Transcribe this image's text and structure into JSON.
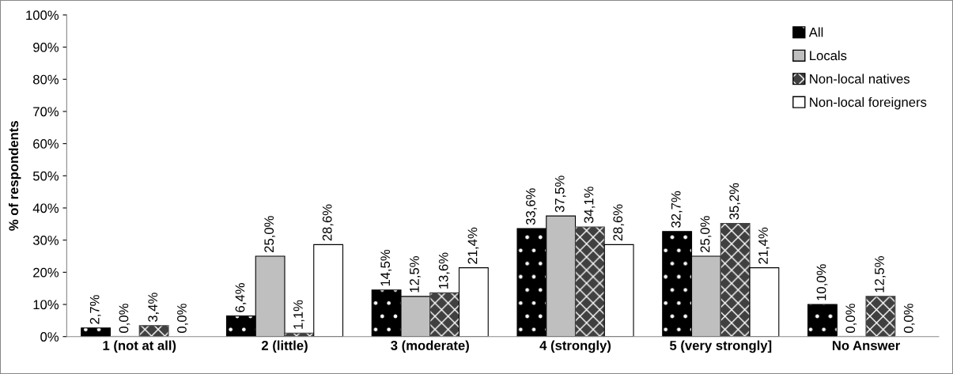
{
  "chart_data": {
    "type": "bar",
    "ylabel": "% of respondents",
    "categories": [
      "1 (not at all)",
      "2 (little)",
      "3 (moderate)",
      "4 (strongly)",
      "5 (very strongly]",
      "No Answer"
    ],
    "series": [
      {
        "name": "All",
        "color": "#000000",
        "values": [
          2.7,
          6.4,
          14.5,
          33.6,
          32.7,
          10.0
        ],
        "value_labels": [
          "2,7%",
          "6,4%",
          "14,5%",
          "33,6%",
          "32,7%",
          "10,0%"
        ]
      },
      {
        "name": "Locals",
        "color": "#bfbfbf",
        "values": [
          0.0,
          25.0,
          12.5,
          37.5,
          25.0,
          0.0
        ],
        "value_labels": [
          "0,0%",
          "25,0%",
          "12,5%",
          "37,5%",
          "25,0%",
          "0,0%"
        ]
      },
      {
        "name": "Non-local natives",
        "color": "#404040",
        "values": [
          3.4,
          1.1,
          13.6,
          34.1,
          35.2,
          12.5
        ],
        "value_labels": [
          "3,4%",
          "1,1%",
          "13,6%",
          "34,1%",
          "35,2%",
          "12,5%"
        ]
      },
      {
        "name": "Non-local foreigners",
        "color": "#ffffff",
        "values": [
          0.0,
          28.6,
          21.4,
          28.6,
          21.4,
          0.0
        ],
        "value_labels": [
          "0,0%",
          "28,6%",
          "21,4%",
          "28,6%",
          "21,4%",
          "0,0%"
        ]
      }
    ],
    "ylim": [
      0,
      100
    ],
    "yticks": [
      {
        "value": 0,
        "label": "0%"
      },
      {
        "value": 10,
        "label": "10%"
      },
      {
        "value": 20,
        "label": "20%"
      },
      {
        "value": 30,
        "label": "30%"
      },
      {
        "value": 40,
        "label": "40%"
      },
      {
        "value": 50,
        "label": "50%"
      },
      {
        "value": 60,
        "label": "60%"
      },
      {
        "value": 70,
        "label": "70%"
      },
      {
        "value": 80,
        "label": "80%"
      },
      {
        "value": 90,
        "label": "90%"
      },
      {
        "value": 100,
        "label": "100%"
      }
    ],
    "legend": "top right",
    "grid": false
  }
}
